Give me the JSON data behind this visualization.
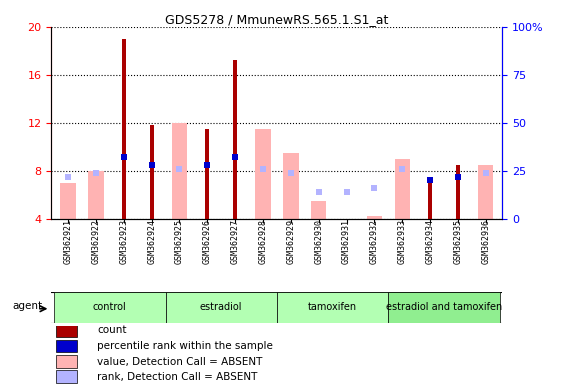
{
  "title": "GDS5278 / MmunewRS.565.1.S1_at",
  "samples": [
    "GSM362921",
    "GSM362922",
    "GSM362923",
    "GSM362924",
    "GSM362925",
    "GSM362926",
    "GSM362927",
    "GSM362928",
    "GSM362929",
    "GSM362930",
    "GSM362931",
    "GSM362932",
    "GSM362933",
    "GSM362934",
    "GSM362935",
    "GSM362936"
  ],
  "count_values": [
    null,
    null,
    19.0,
    11.8,
    null,
    11.5,
    17.2,
    null,
    null,
    null,
    null,
    null,
    null,
    7.0,
    8.5,
    null
  ],
  "rank_values_pct": [
    null,
    null,
    32.0,
    28.0,
    null,
    28.0,
    32.0,
    null,
    null,
    null,
    null,
    null,
    null,
    20.0,
    22.0,
    null
  ],
  "value_absent": [
    7.0,
    8.0,
    null,
    null,
    12.0,
    null,
    null,
    11.5,
    9.5,
    5.5,
    null,
    4.2,
    9.0,
    null,
    null,
    8.5
  ],
  "rank_absent_pct": [
    22.0,
    24.0,
    null,
    null,
    26.0,
    null,
    null,
    26.0,
    24.0,
    14.0,
    14.0,
    16.0,
    26.0,
    null,
    null,
    24.0
  ],
  "groups": [
    {
      "label": "control",
      "start": 0,
      "end": 3
    },
    {
      "label": "estradiol",
      "start": 4,
      "end": 7
    },
    {
      "label": "tamoxifen",
      "start": 8,
      "end": 11
    },
    {
      "label": "estradiol and tamoxifen",
      "start": 12,
      "end": 15
    }
  ],
  "group_colors": [
    "#b3ffb3",
    "#b3ffb3",
    "#b3ffb3",
    "#90ee90"
  ],
  "ylim_left": [
    4,
    20
  ],
  "ylim_right": [
    0,
    100
  ],
  "yticks_left": [
    4,
    8,
    12,
    16,
    20
  ],
  "yticks_right": [
    0,
    25,
    50,
    75,
    100
  ],
  "color_count": "#aa0000",
  "color_rank": "#0000cc",
  "color_value_absent": "#ffb3b3",
  "color_rank_absent": "#b3b3ff",
  "legend_items": [
    {
      "label": "count",
      "color": "#aa0000"
    },
    {
      "label": "percentile rank within the sample",
      "color": "#0000cc"
    },
    {
      "label": "value, Detection Call = ABSENT",
      "color": "#ffb3b3"
    },
    {
      "label": "rank, Detection Call = ABSENT",
      "color": "#b3b3ff"
    }
  ]
}
